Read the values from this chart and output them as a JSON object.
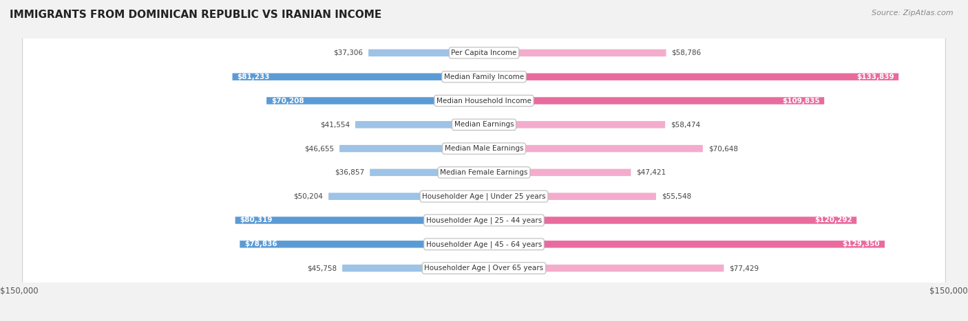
{
  "title": "IMMIGRANTS FROM DOMINICAN REPUBLIC VS IRANIAN INCOME",
  "source": "Source: ZipAtlas.com",
  "categories": [
    "Per Capita Income",
    "Median Family Income",
    "Median Household Income",
    "Median Earnings",
    "Median Male Earnings",
    "Median Female Earnings",
    "Householder Age | Under 25 years",
    "Householder Age | 25 - 44 years",
    "Householder Age | 45 - 64 years",
    "Householder Age | Over 65 years"
  ],
  "dominican": [
    37306,
    81233,
    70208,
    41554,
    46655,
    36857,
    50204,
    80319,
    78836,
    45758
  ],
  "iranian": [
    58786,
    133839,
    109835,
    58474,
    70648,
    47421,
    55548,
    120292,
    129350,
    77429
  ],
  "dominican_labels": [
    "$37,306",
    "$81,233",
    "$70,208",
    "$41,554",
    "$46,655",
    "$36,857",
    "$50,204",
    "$80,319",
    "$78,836",
    "$45,758"
  ],
  "iranian_labels": [
    "$58,786",
    "$133,839",
    "$109,835",
    "$58,474",
    "$70,648",
    "$47,421",
    "$55,548",
    "$120,292",
    "$129,350",
    "$77,429"
  ],
  "dominican_color_light": "#9dc3e6",
  "dominican_color_dark": "#5b9bd5",
  "iranian_color_light": "#f4accd",
  "iranian_color_dark": "#e96b9e",
  "max_value": 150000,
  "bg_color": "#f2f2f2",
  "row_bg_light": "#f9f9f9",
  "row_bg_dark": "#ebebeb"
}
